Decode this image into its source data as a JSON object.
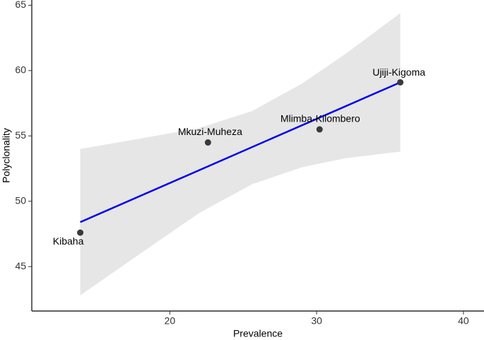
{
  "chart_data": {
    "type": "scatter",
    "x_label": "Prevalence",
    "y_label": "Polyclonality",
    "xlim": [
      10.6,
      41.4
    ],
    "ylim": [
      41.6,
      65.4
    ],
    "xticks": [
      20,
      30,
      40
    ],
    "yticks": [
      45,
      50,
      55,
      60,
      65
    ],
    "grid": false,
    "points": {
      "labels": [
        "Kibaha",
        "Mkuzi-Muheza",
        "Mlimba-Kilombero",
        "Ujiji-Kigoma"
      ],
      "x": [
        13.9,
        22.6,
        30.2,
        35.7
      ],
      "values": [
        47.6,
        54.5,
        55.5,
        59.1
      ],
      "color": "#3a3a3a"
    },
    "fit": {
      "x": [
        13.9,
        35.7
      ],
      "values": [
        48.4,
        59.1
      ],
      "color": "#0000ee"
    },
    "band": {
      "x": [
        13.9,
        18,
        22,
        25.6,
        29,
        32,
        35.7
      ],
      "upper": [
        54.0,
        54.8,
        55.6,
        56.9,
        59.0,
        61.3,
        64.4
      ],
      "lower": [
        42.8,
        46.0,
        49.1,
        51.3,
        52.6,
        53.3,
        53.8
      ],
      "color": "#e6e6e6"
    }
  }
}
